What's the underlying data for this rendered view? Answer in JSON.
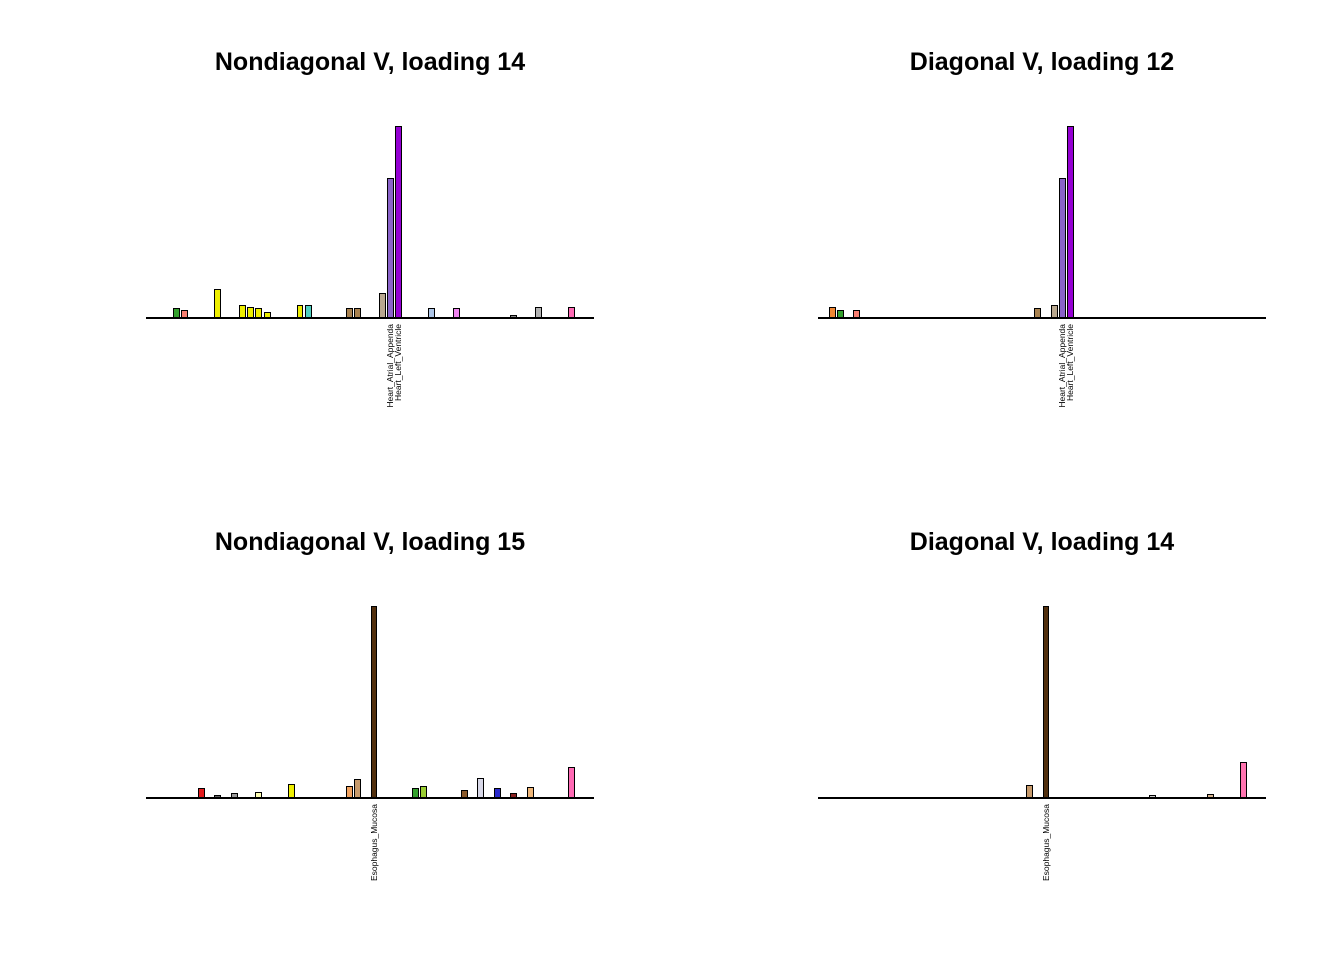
{
  "figure": {
    "background": "#ffffff",
    "axis_color": "#000000",
    "bar_border_color": "#000000",
    "layout": "2x2-grid"
  },
  "chart_data": [
    {
      "type": "bar",
      "title": "Nondiagonal V, loading 14",
      "n_categories": 54,
      "ylim": [
        0,
        1
      ],
      "grid": false,
      "legend": false,
      "xticklabels": [
        {
          "index": 29,
          "label": "Heart_Atrial_Appenda"
        },
        {
          "index": 30,
          "label": "Heart_Left_Ventricle"
        }
      ],
      "bars": [
        {
          "index": 3,
          "value": 0.05,
          "color": "#33a02c"
        },
        {
          "index": 4,
          "value": 0.04,
          "color": "#fa8072"
        },
        {
          "index": 8,
          "value": 0.15,
          "color": "#eeee00"
        },
        {
          "index": 11,
          "value": 0.07,
          "color": "#eeee00"
        },
        {
          "index": 12,
          "value": 0.06,
          "color": "#eeee00"
        },
        {
          "index": 13,
          "value": 0.05,
          "color": "#eeee00"
        },
        {
          "index": 14,
          "value": 0.03,
          "color": "#eeee00"
        },
        {
          "index": 18,
          "value": 0.07,
          "color": "#eeee00"
        },
        {
          "index": 19,
          "value": 0.07,
          "color": "#4fd0c0"
        },
        {
          "index": 24,
          "value": 0.05,
          "color": "#a9824f"
        },
        {
          "index": 25,
          "value": 0.05,
          "color": "#a9824f"
        },
        {
          "index": 28,
          "value": 0.13,
          "color": "#b9a88f"
        },
        {
          "index": 29,
          "value": 0.73,
          "color": "#8a63c9"
        },
        {
          "index": 30,
          "value": 1.0,
          "color": "#9400d3"
        },
        {
          "index": 34,
          "value": 0.05,
          "color": "#aec6e8"
        },
        {
          "index": 37,
          "value": 0.05,
          "color": "#ee82ee"
        },
        {
          "index": 44,
          "value": 0.015,
          "color": "#888888"
        },
        {
          "index": 47,
          "value": 0.06,
          "color": "#b3b3b3"
        },
        {
          "index": 51,
          "value": 0.06,
          "color": "#ff69b4"
        }
      ]
    },
    {
      "type": "bar",
      "title": "Diagonal V, loading 12",
      "n_categories": 54,
      "ylim": [
        0,
        1
      ],
      "grid": false,
      "legend": false,
      "xticklabels": [
        {
          "index": 29,
          "label": "Heart_Atrial_Appenda"
        },
        {
          "index": 30,
          "label": "Heart_Left_Ventricle"
        }
      ],
      "bars": [
        {
          "index": 1,
          "value": 0.06,
          "color": "#f08633"
        },
        {
          "index": 2,
          "value": 0.04,
          "color": "#33a02c"
        },
        {
          "index": 4,
          "value": 0.04,
          "color": "#fa8072"
        },
        {
          "index": 26,
          "value": 0.05,
          "color": "#a9824f"
        },
        {
          "index": 28,
          "value": 0.07,
          "color": "#b9a88f"
        },
        {
          "index": 29,
          "value": 0.73,
          "color": "#8a63c9"
        },
        {
          "index": 30,
          "value": 1.0,
          "color": "#9400d3"
        }
      ]
    },
    {
      "type": "bar",
      "title": "Nondiagonal V, loading 15",
      "n_categories": 54,
      "ylim": [
        0,
        1
      ],
      "grid": false,
      "legend": false,
      "xticklabels": [
        {
          "index": 27,
          "label": "Esophagus_Mucosa"
        }
      ],
      "bars": [
        {
          "index": 6,
          "value": 0.05,
          "color": "#e31a1c"
        },
        {
          "index": 8,
          "value": 0.015,
          "color": "#666666"
        },
        {
          "index": 10,
          "value": 0.025,
          "color": "#999999"
        },
        {
          "index": 13,
          "value": 0.03,
          "color": "#ffffb3"
        },
        {
          "index": 17,
          "value": 0.075,
          "color": "#eeee00"
        },
        {
          "index": 24,
          "value": 0.065,
          "color": "#f4a460"
        },
        {
          "index": 25,
          "value": 0.1,
          "color": "#c79a6b"
        },
        {
          "index": 27,
          "value": 1.0,
          "color": "#52300e"
        },
        {
          "index": 32,
          "value": 0.05,
          "color": "#33a02c"
        },
        {
          "index": 33,
          "value": 0.065,
          "color": "#9acd32"
        },
        {
          "index": 38,
          "value": 0.04,
          "color": "#8b5a2b"
        },
        {
          "index": 40,
          "value": 0.105,
          "color": "#d8d8e8"
        },
        {
          "index": 42,
          "value": 0.05,
          "color": "#2929cc"
        },
        {
          "index": 44,
          "value": 0.025,
          "color": "#8b2222"
        },
        {
          "index": 46,
          "value": 0.055,
          "color": "#efb678"
        },
        {
          "index": 51,
          "value": 0.16,
          "color": "#ff69b4"
        }
      ]
    },
    {
      "type": "bar",
      "title": "Diagonal V, loading 14",
      "n_categories": 54,
      "ylim": [
        0,
        1
      ],
      "grid": false,
      "legend": false,
      "xticklabels": [
        {
          "index": 27,
          "label": "Esophagus_Mucosa"
        }
      ],
      "bars": [
        {
          "index": 25,
          "value": 0.07,
          "color": "#c79a6b"
        },
        {
          "index": 27,
          "value": 1.0,
          "color": "#52300e"
        },
        {
          "index": 40,
          "value": 0.015,
          "color": "#cccccc"
        },
        {
          "index": 47,
          "value": 0.02,
          "color": "#d8b690"
        },
        {
          "index": 51,
          "value": 0.19,
          "color": "#ff74b0"
        }
      ]
    }
  ]
}
